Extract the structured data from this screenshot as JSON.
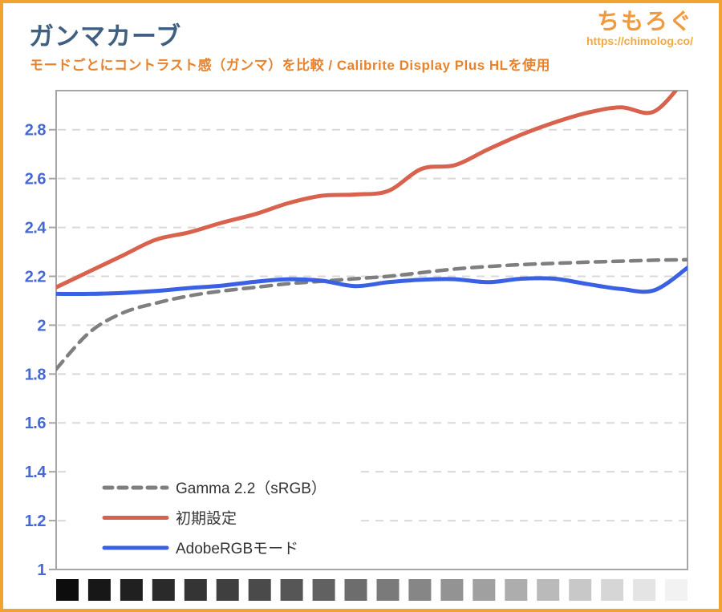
{
  "header": {
    "title": "ガンマカーブ",
    "subtitle": "モードごとにコントラスト感（ガンマ）を比較 / Calibrite Display Plus HLを使用",
    "logo_text": "ちもろぐ",
    "logo_url": "https://chimolog.co/"
  },
  "colors": {
    "frame_orange": "#f0a232",
    "title_blue": "#3f6080",
    "subtitle_orange": "#e8832d",
    "logo_orange": "#f2993b",
    "axis_label_blue": "#4569d4",
    "plot_border_gray": "#a6a6a6",
    "gridline_gray": "#d9d9d9",
    "legend_text": "#333333"
  },
  "chart_data": {
    "type": "line",
    "title": "ガンマカーブ",
    "xlabel": "",
    "ylabel": "",
    "ylim": [
      1.0,
      2.96
    ],
    "grid": "horizontal-dashed",
    "legend_position": "inside-bottom-left",
    "y_ticks": [
      {
        "label": "2.8",
        "value": 2.8
      },
      {
        "label": "2.6",
        "value": 2.6
      },
      {
        "label": "2.4",
        "value": 2.4
      },
      {
        "label": "2.2",
        "value": 2.2
      },
      {
        "label": "2",
        "value": 2.0
      },
      {
        "label": "1.8",
        "value": 1.8
      },
      {
        "label": "1.6",
        "value": 1.6
      },
      {
        "label": "1.4",
        "value": 1.4
      },
      {
        "label": "1.2",
        "value": 1.2
      },
      {
        "label": "1",
        "value": 1.0
      }
    ],
    "x_axis": {
      "style": "grayscale-swatches",
      "steps": 20,
      "swatch_colors": [
        "#0d0d0d",
        "#171717",
        "#202020",
        "#2a2a2a",
        "#343434",
        "#3f3f3f",
        "#4a4a4a",
        "#565656",
        "#616161",
        "#6d6d6d",
        "#7a7a7a",
        "#868686",
        "#939393",
        "#a0a0a0",
        "#adadad",
        "#bababa",
        "#c8c8c8",
        "#d6d6d6",
        "#e4e4e4",
        "#f2f2f2"
      ]
    },
    "series": [
      {
        "name": "Gamma 2.2（sRGB）",
        "color": "#7f7f7f",
        "style": "dashed",
        "values": [
          1.82,
          1.97,
          2.05,
          2.09,
          2.12,
          2.14,
          2.155,
          2.17,
          2.18,
          2.19,
          2.2,
          2.215,
          2.23,
          2.24,
          2.248,
          2.253,
          2.258,
          2.262,
          2.266,
          2.268
        ]
      },
      {
        "name": "初期設定",
        "color": "#d8624d",
        "style": "solid",
        "values": [
          2.155,
          2.22,
          2.285,
          2.35,
          2.38,
          2.42,
          2.455,
          2.5,
          2.53,
          2.535,
          2.55,
          2.64,
          2.655,
          2.72,
          2.78,
          2.83,
          2.87,
          2.892,
          2.875,
          3.02
        ]
      },
      {
        "name": "AdobeRGBモード",
        "color": "#3a60e4",
        "style": "solid",
        "values": [
          2.128,
          2.128,
          2.132,
          2.14,
          2.152,
          2.162,
          2.178,
          2.188,
          2.182,
          2.16,
          2.176,
          2.186,
          2.188,
          2.176,
          2.19,
          2.19,
          2.168,
          2.148,
          2.143,
          2.235
        ]
      }
    ]
  }
}
